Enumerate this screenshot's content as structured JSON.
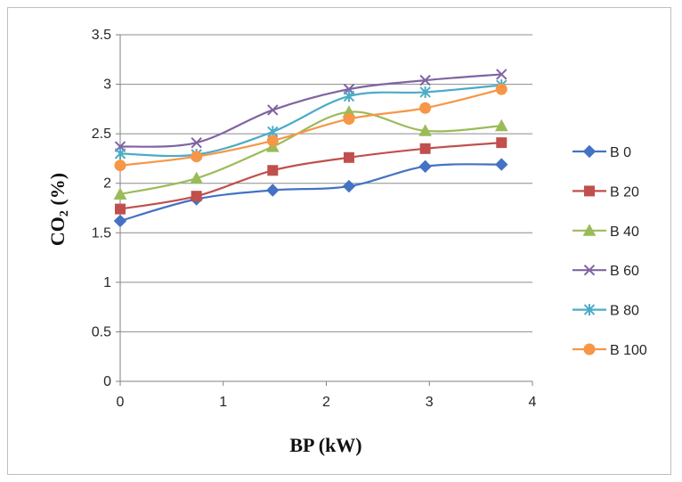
{
  "chart_data": {
    "type": "line",
    "xlabel": "BP (kW)",
    "ylabel_main": "CO",
    "ylabel_sub": "2",
    "ylabel_unit": "(%)",
    "xlim": [
      0,
      4
    ],
    "ylim": [
      0,
      3.5
    ],
    "x_ticks": [
      "0",
      "1",
      "2",
      "3",
      "4"
    ],
    "y_ticks": [
      "0",
      "0.5",
      "1",
      "1.5",
      "2",
      "2.5",
      "3",
      "3.5"
    ],
    "grid": "horizontal",
    "legend_position": "right",
    "x": [
      0,
      0.74,
      1.48,
      2.22,
      2.96,
      3.7
    ],
    "series": [
      {
        "name": "B 0",
        "values": [
          1.62,
          1.84,
          1.93,
          1.97,
          2.17,
          2.19
        ],
        "color": "#4472C4",
        "marker": "diamond"
      },
      {
        "name": "B 20",
        "values": [
          1.74,
          1.87,
          2.13,
          2.26,
          2.35,
          2.41
        ],
        "color": "#C0504D",
        "marker": "square"
      },
      {
        "name": "B 40",
        "values": [
          1.89,
          2.05,
          2.37,
          2.72,
          2.53,
          2.58
        ],
        "color": "#9BBB59",
        "marker": "triangle"
      },
      {
        "name": "B 60",
        "values": [
          2.37,
          2.41,
          2.74,
          2.95,
          3.04,
          3.1
        ],
        "color": "#8064A2",
        "marker": "x"
      },
      {
        "name": "B 80",
        "values": [
          2.3,
          2.29,
          2.52,
          2.88,
          2.92,
          2.99
        ],
        "color": "#4BACC6",
        "marker": "star"
      },
      {
        "name": "B 100",
        "values": [
          2.18,
          2.27,
          2.43,
          2.65,
          2.76,
          2.95
        ],
        "color": "#F79646",
        "marker": "circle"
      }
    ]
  }
}
